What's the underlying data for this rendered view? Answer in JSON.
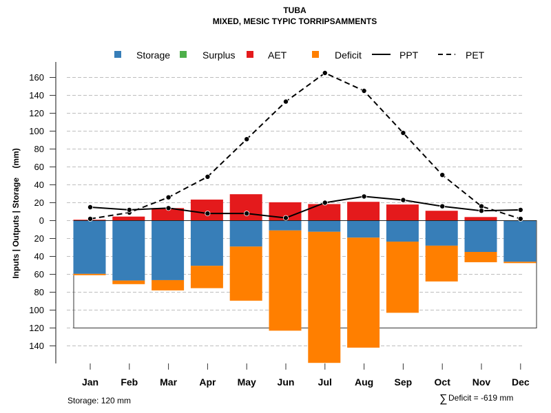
{
  "chart_data": {
    "type": "bar",
    "title": "TUBA",
    "subtitle": "MIXED, MESIC TYPIC TORRIPSAMMENTS",
    "xlabel": "",
    "ylabel": "Inputs | Outputs | Storage    (mm)",
    "ylim": [
      -160,
      165
    ],
    "yticks": [
      160,
      140,
      120,
      100,
      80,
      60,
      40,
      20,
      0,
      20,
      40,
      60,
      80,
      100,
      120,
      140
    ],
    "ytick_values": [
      160,
      140,
      120,
      100,
      80,
      60,
      40,
      20,
      0,
      -20,
      -40,
      -60,
      -80,
      -100,
      -120,
      -140
    ],
    "grid": true,
    "legend_position": "top",
    "categories": [
      "Jan",
      "Feb",
      "Mar",
      "Apr",
      "May",
      "Jun",
      "Jul",
      "Aug",
      "Sep",
      "Oct",
      "Nov",
      "Dec"
    ],
    "legend": [
      {
        "name": "Storage",
        "kind": "box",
        "color": "#377EB8"
      },
      {
        "name": "Surplus",
        "kind": "box",
        "color": "#4DAF4A"
      },
      {
        "name": "AET",
        "kind": "box",
        "color": "#E41A1C"
      },
      {
        "name": "Deficit",
        "kind": "box",
        "color": "#FF7F00"
      },
      {
        "name": "PPT",
        "kind": "solid-line",
        "color": "#000000"
      },
      {
        "name": "PET",
        "kind": "dashed-line",
        "color": "#000000"
      }
    ],
    "series": [
      {
        "name": "AET",
        "color": "#E41A1C",
        "direction": "up",
        "values": [
          1,
          4.5,
          14,
          23.5,
          29.5,
          20.5,
          18.5,
          21,
          18,
          11,
          4,
          0
        ]
      },
      {
        "name": "Surplus",
        "color": "#4DAF4A",
        "direction": "up",
        "values": [
          0,
          0,
          0,
          0,
          0,
          0,
          0,
          0,
          0,
          0,
          0,
          0
        ]
      },
      {
        "name": "Storage",
        "color": "#377EB8",
        "direction": "down",
        "values": [
          59.5,
          67,
          66.5,
          50.5,
          29,
          11,
          12.5,
          19,
          23.5,
          28,
          35,
          46
        ]
      },
      {
        "name": "Deficit",
        "color": "#FF7F00",
        "direction": "down",
        "values": [
          1.5,
          4,
          11.5,
          25,
          60.5,
          112,
          146.5,
          123,
          79.5,
          40,
          11.5,
          1.5
        ]
      },
      {
        "name": "PPT",
        "color": "#000000",
        "style": "solid",
        "values": [
          15,
          12,
          14,
          8,
          8,
          3,
          20,
          27,
          23,
          16,
          11,
          12
        ]
      },
      {
        "name": "PET",
        "color": "#000000",
        "style": "dashed",
        "values": [
          2,
          9,
          26,
          49,
          91,
          133,
          165,
          145,
          98,
          51,
          16,
          2
        ]
      }
    ],
    "storage_capacity": 120,
    "annotations": {
      "storage": "Storage: 120 mm",
      "deficit_sum": "Deficit = -619 mm",
      "deficit_symbol": "∑"
    }
  }
}
